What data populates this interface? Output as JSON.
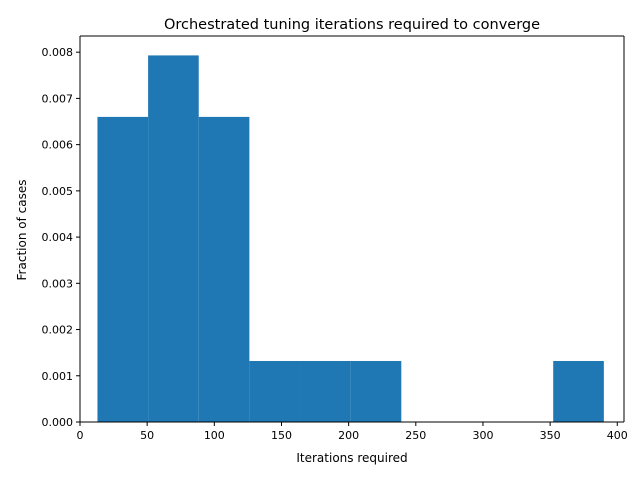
{
  "chart_data": {
    "type": "bar",
    "title": "Orchestrated tuning iterations required to converge",
    "xlabel": "Iterations required",
    "ylabel": "Fraction of cases",
    "xlim": [
      0,
      405
    ],
    "ylim": [
      0,
      0.00835
    ],
    "xticks": [
      0,
      50,
      100,
      150,
      200,
      250,
      300,
      350,
      400
    ],
    "yticks": [
      "0.000",
      "0.001",
      "0.002",
      "0.003",
      "0.004",
      "0.005",
      "0.006",
      "0.007",
      "0.008"
    ],
    "bins": [
      {
        "x0": 13,
        "x1": 50.7,
        "value": 0.0066
      },
      {
        "x0": 50.7,
        "x1": 88.4,
        "value": 0.00793
      },
      {
        "x0": 88.4,
        "x1": 126.1,
        "value": 0.0066
      },
      {
        "x0": 126.1,
        "x1": 163.8,
        "value": 0.00132
      },
      {
        "x0": 163.8,
        "x1": 201.5,
        "value": 0.00132
      },
      {
        "x0": 201.5,
        "x1": 239.2,
        "value": 0.00132
      },
      {
        "x0": 239.2,
        "x1": 276.9,
        "value": 0
      },
      {
        "x0": 276.9,
        "x1": 314.6,
        "value": 0
      },
      {
        "x0": 314.6,
        "x1": 352.3,
        "value": 0
      },
      {
        "x0": 352.3,
        "x1": 390,
        "value": 0.00132
      }
    ],
    "bar_color": "#1f77b4",
    "grid": false,
    "legend": "none"
  }
}
